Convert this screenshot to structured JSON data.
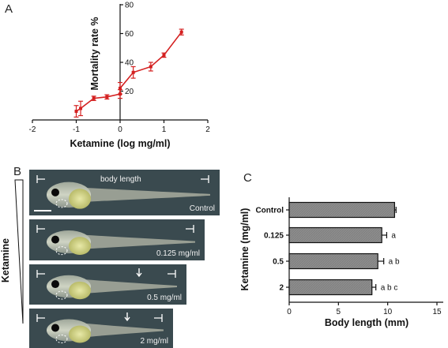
{
  "figure": {
    "panel_labels": [
      "A",
      "B",
      "C"
    ],
    "panel_b": {
      "axis_label": "Ketamine",
      "body_length_label": "body length",
      "photos": [
        {
          "label": "Control"
        },
        {
          "label": "0.125 mg/ml"
        },
        {
          "label": "0.5 mg/ml"
        },
        {
          "label": "2 mg/ml"
        }
      ]
    }
  },
  "colors": {
    "line": "#d42020",
    "bar_fill": "#8c8c8c",
    "photo_bg": "#3a4a4f"
  },
  "chart_data": [
    {
      "type": "line",
      "panel": "A",
      "xlabel": "Ketamine (log mg/ml)",
      "ylabel": "Mortality rate %",
      "xlim": [
        -2,
        2
      ],
      "ylim": [
        0,
        80
      ],
      "x_ticks": [
        -2,
        -1,
        0,
        1,
        2
      ],
      "y_ticks": [
        20,
        40,
        60,
        80
      ],
      "grid": false,
      "series": [
        {
          "x": [
            -1.0,
            -0.9,
            -0.6,
            -0.3,
            0.0,
            0.0,
            0.3,
            0.7,
            1.0,
            1.4
          ],
          "y": [
            6,
            8,
            15,
            16,
            18,
            22,
            33,
            37,
            45,
            61
          ],
          "error": [
            4,
            5,
            1.5,
            1.5,
            3,
            4,
            4,
            3,
            1.5,
            2
          ]
        }
      ]
    },
    {
      "type": "bar",
      "panel": "C",
      "orientation": "horizontal",
      "categories": [
        "Control",
        "0.125",
        "0.5",
        "2"
      ],
      "values": [
        10.7,
        9.4,
        9.0,
        8.4
      ],
      "error": [
        0.15,
        0.5,
        0.6,
        0.4
      ],
      "annotations": [
        "",
        "a",
        "ab",
        "abc"
      ],
      "xlabel": "Body length (mm)",
      "ylabel": "Ketamine (mg/ml)",
      "xlim": [
        0,
        15
      ],
      "x_ticks": [
        0,
        5,
        10,
        15
      ],
      "grid": false
    }
  ]
}
